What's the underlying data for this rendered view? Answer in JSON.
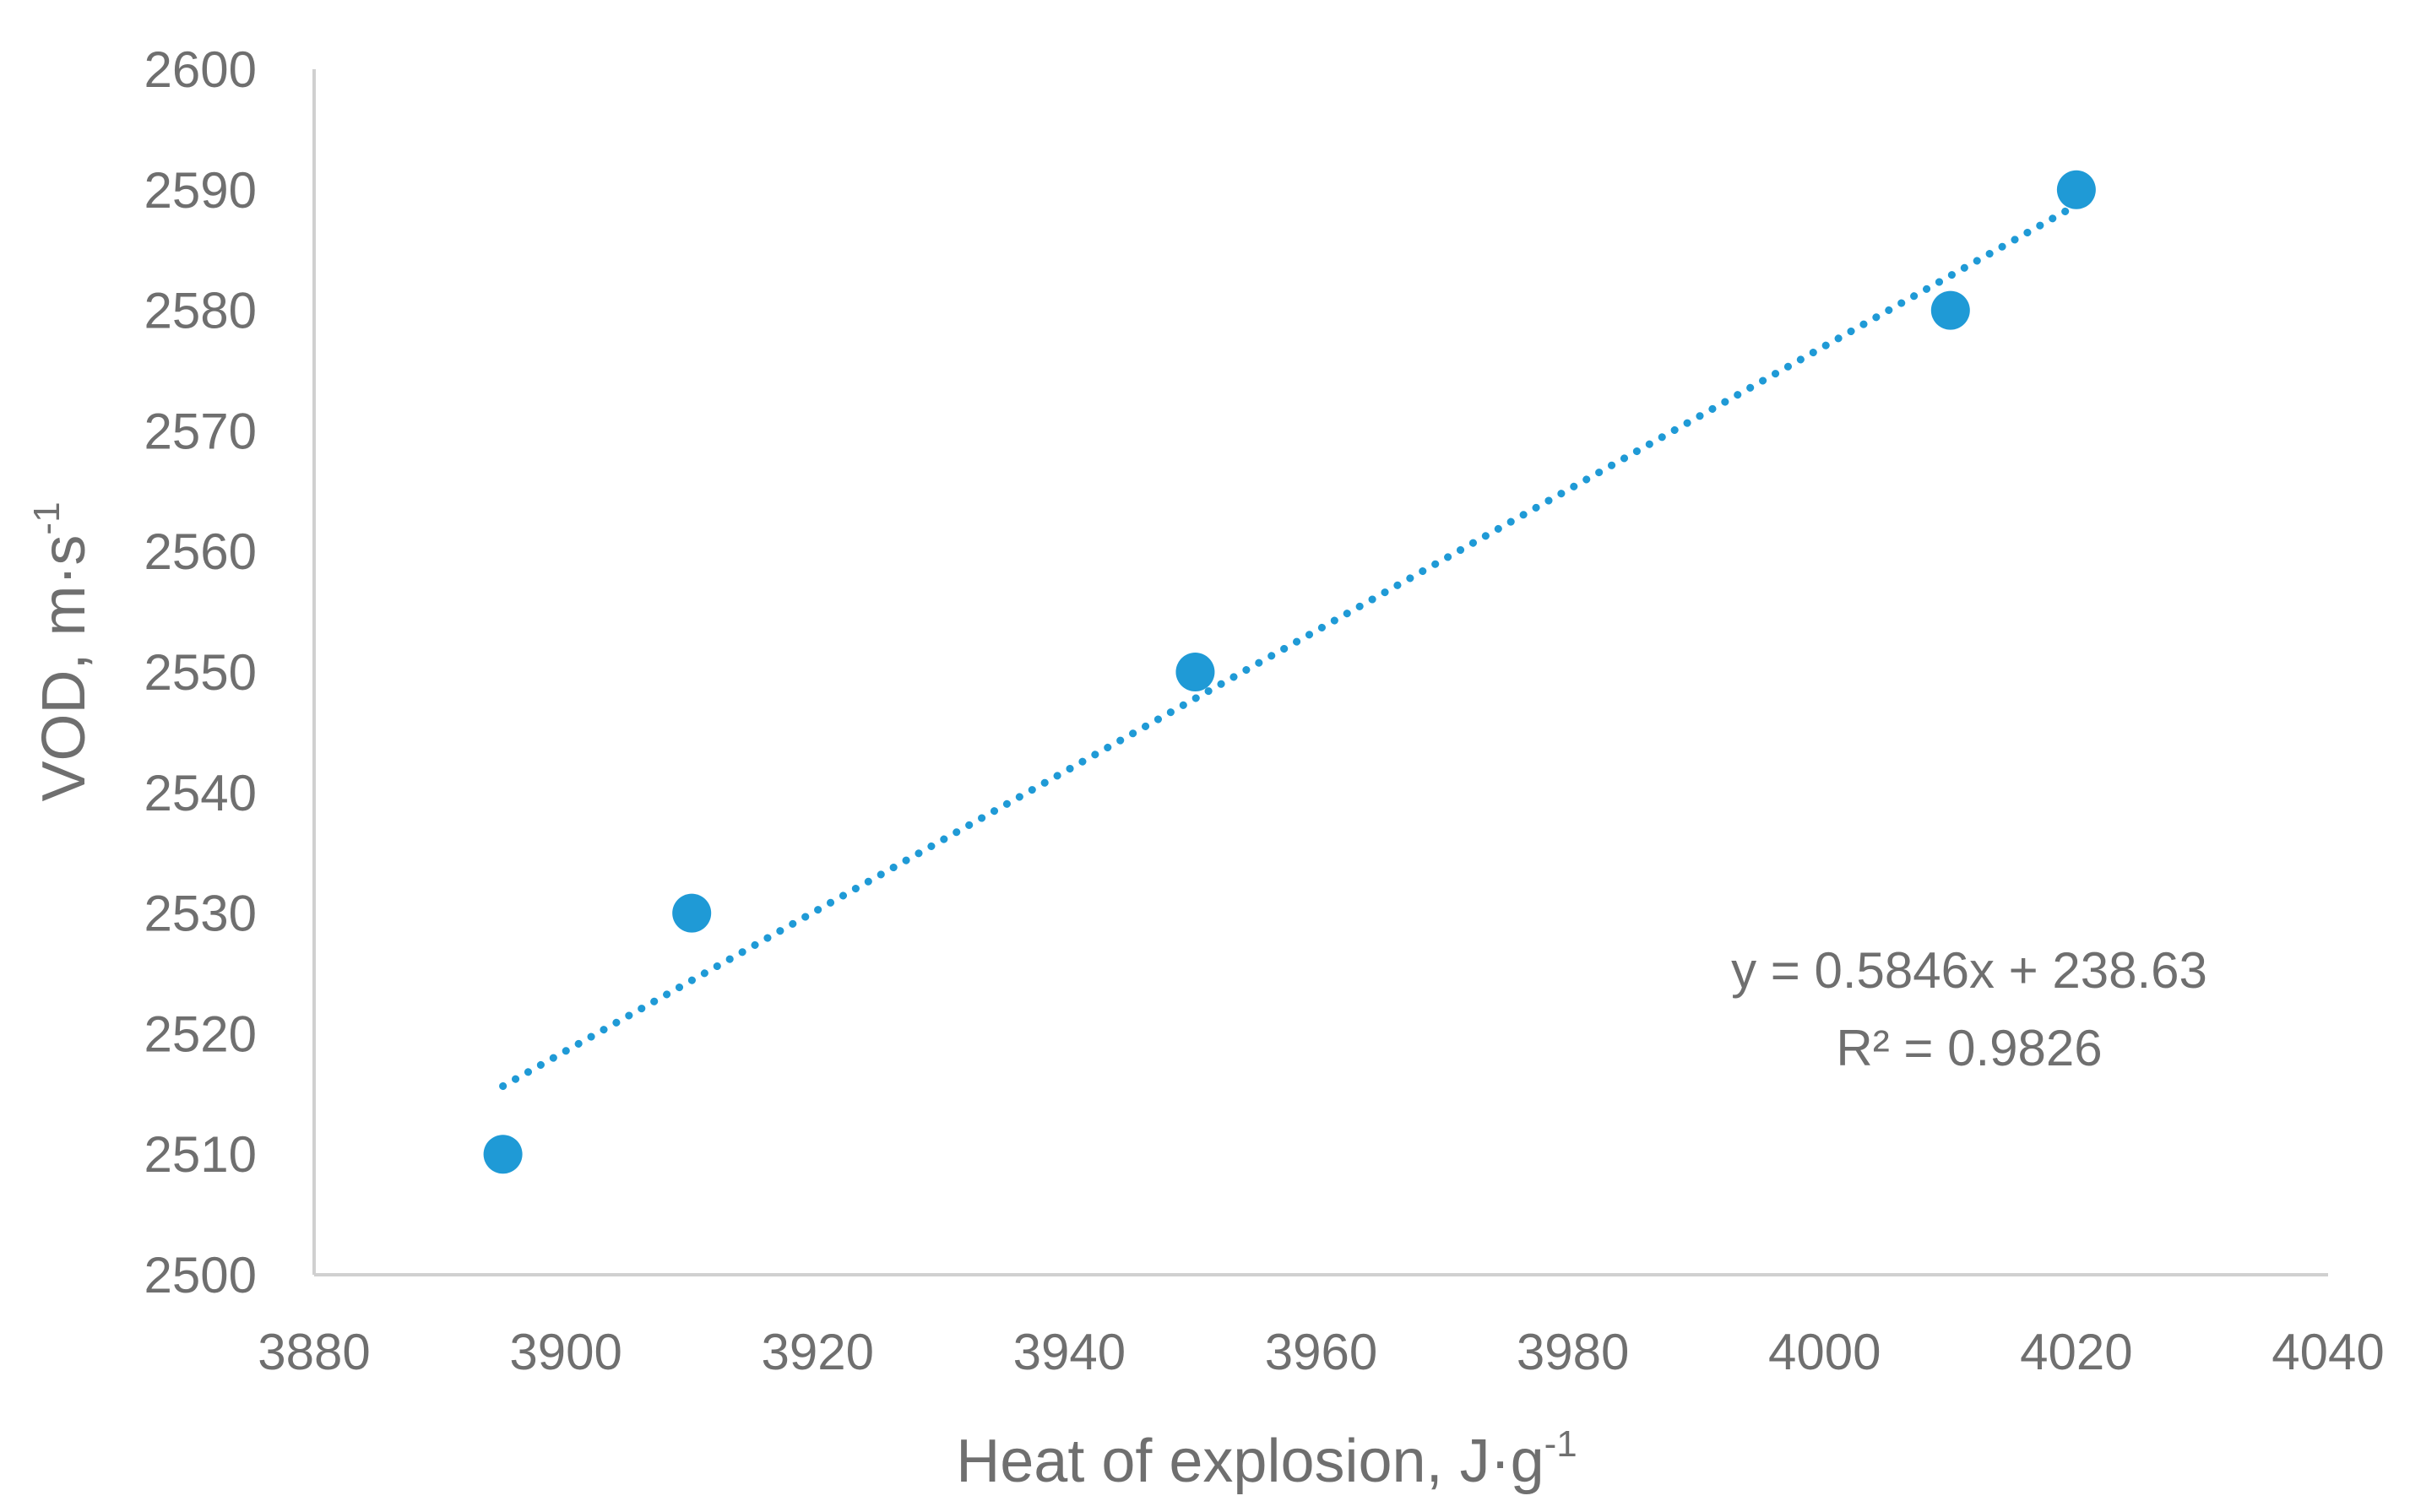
{
  "chart_data": {
    "type": "scatter",
    "title": "",
    "xlabel": {
      "text": "Heat of explosion, J·g",
      "sup": "-1"
    },
    "ylabel": {
      "text": "VOD, m·s",
      "sup": "-1"
    },
    "xlim": [
      3880,
      4040
    ],
    "ylim": [
      2500,
      2600
    ],
    "x_ticks": [
      3880,
      3900,
      3920,
      3940,
      3960,
      3980,
      4000,
      4020,
      4040
    ],
    "y_ticks": [
      2500,
      2510,
      2520,
      2530,
      2540,
      2550,
      2560,
      2570,
      2580,
      2590,
      2600
    ],
    "grid": false,
    "legend": "none",
    "series": [
      {
        "color": "#1f9ad6",
        "points": [
          {
            "x": 3895,
            "y": 2510
          },
          {
            "x": 3910,
            "y": 2530
          },
          {
            "x": 3950,
            "y": 2550
          },
          {
            "x": 4010,
            "y": 2580
          },
          {
            "x": 4020,
            "y": 2590
          }
        ]
      }
    ],
    "trendline": {
      "type": "linear",
      "style": "dotted",
      "color": "#1f9ad6",
      "slope": 0.5846,
      "intercept": 238.63,
      "x_range": [
        3895,
        4020
      ],
      "equation_label": "y = 0.5846x + 238.63",
      "r2_label": "R² = 0.9826"
    }
  }
}
